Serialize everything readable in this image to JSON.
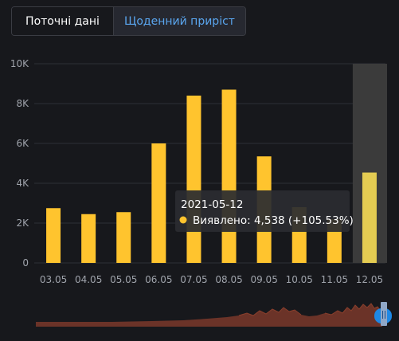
{
  "tabs": [
    {
      "label": "Поточні дані",
      "active": false
    },
    {
      "label": "Щоденний приріст",
      "active": true
    }
  ],
  "colors": {
    "bar": "#ffc42e",
    "bar_highlight": "#e4cc52",
    "selection_band": "#3b3b3b",
    "tab_active_text": "#5aa6ef",
    "navigator_area": "#6b3328",
    "navigator_handle": "#1e88e5"
  },
  "tooltip": {
    "date": "2021-05-12",
    "label": "Виявлено: 4,538 (+105.53%)"
  },
  "chart_data": {
    "type": "bar",
    "categories": [
      "03.05",
      "04.05",
      "05.05",
      "06.05",
      "07.05",
      "08.05",
      "09.05",
      "10.05",
      "11.05",
      "12.05"
    ],
    "values": [
      2750,
      2450,
      2550,
      6000,
      8400,
      8700,
      5350,
      2800,
      2200,
      4538
    ],
    "highlighted_index": 9,
    "ylim": [
      0,
      10000
    ],
    "yticks": [
      {
        "value": 0,
        "label": "0"
      },
      {
        "value": 2000,
        "label": "2K"
      },
      {
        "value": 4000,
        "label": "4K"
      },
      {
        "value": 6000,
        "label": "6K"
      },
      {
        "value": 8000,
        "label": "8K"
      },
      {
        "value": 10000,
        "label": "10K"
      }
    ],
    "grid": true,
    "title": "",
    "xlabel": "",
    "ylabel": ""
  }
}
